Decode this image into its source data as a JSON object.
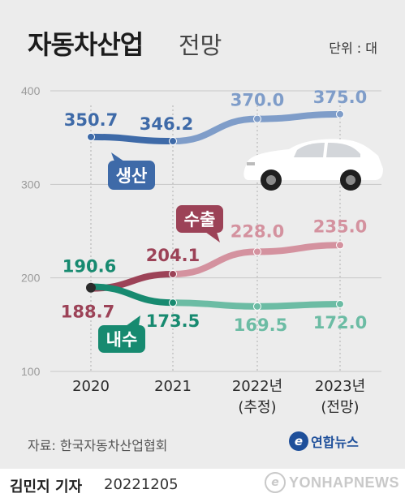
{
  "header": {
    "title": "자동차산업",
    "subtitle": "전망",
    "unit": "단위 : 대"
  },
  "footer": {
    "source": "자료: 한국자동차산업협회",
    "logo_text": "연합뉴스",
    "logo_glyph": "e",
    "reporter": "김민지 기자",
    "date": "20221205",
    "watermark": "YONHAPNEWS",
    "watermark_glyph": "e"
  },
  "chart_data": {
    "type": "line",
    "categories": [
      "2020",
      "2021",
      "2022년",
      "2023년"
    ],
    "category_notes": [
      "",
      "",
      "(추정)",
      "(전망)"
    ],
    "y_ticks": [
      400,
      300,
      200,
      100
    ],
    "ylim": [
      100,
      400
    ],
    "grid": true,
    "series": [
      {
        "name": "생산",
        "values": [
          350.7,
          346.2,
          370.0,
          375.0
        ],
        "labels": [
          "350.7",
          "346.2",
          "370.0",
          "375.0"
        ],
        "color": "#3e6aa8",
        "future_color": "#7f9dc9"
      },
      {
        "name": "수출",
        "values": [
          188.7,
          204.1,
          228.0,
          235.0
        ],
        "labels": [
          "188.7",
          "204.1",
          "228.0",
          "235.0"
        ],
        "color": "#9c4257",
        "future_color": "#d4929f"
      },
      {
        "name": "내수",
        "values": [
          190.6,
          173.5,
          169.5,
          172.0
        ],
        "labels": [
          "190.6",
          "173.5",
          "169.5",
          "172.0"
        ],
        "color": "#178a70",
        "future_color": "#6cbca4"
      }
    ]
  }
}
